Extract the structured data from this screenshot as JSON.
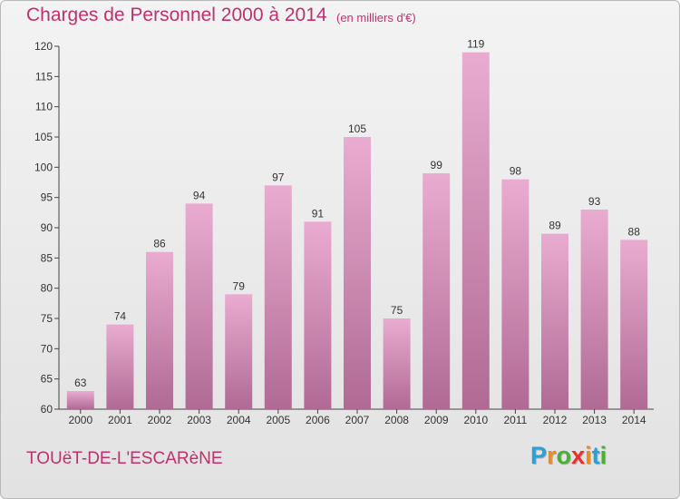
{
  "title": "Charges de Personnel 2000 à 2014",
  "subtitle": "(en milliers d'€)",
  "commune": "TOUëT-DE-L'ESCARèNE",
  "logo": {
    "letters": [
      "P",
      "r",
      "o",
      "x",
      "i",
      "t",
      "i"
    ],
    "colors": [
      "#2a9fd8",
      "#f08a1c",
      "#4caf34",
      "#e8312a",
      "#f08a1c",
      "#2a9fd8",
      "#4caf34"
    ]
  },
  "colors": {
    "bar_top": "#e9acd0",
    "bar_bottom": "#b06a94",
    "accent": "#c0306e"
  },
  "chart_data": {
    "type": "bar",
    "categories": [
      "2000",
      "2001",
      "2002",
      "2003",
      "2004",
      "2005",
      "2006",
      "2007",
      "2008",
      "2009",
      "2010",
      "2011",
      "2012",
      "2013",
      "2014"
    ],
    "values": [
      63,
      74,
      86,
      94,
      79,
      97,
      91,
      105,
      75,
      99,
      119,
      98,
      89,
      93,
      88
    ],
    "title": "Charges de Personnel 2000 à 2014",
    "ylim": [
      60,
      120
    ],
    "yticks": [
      60,
      65,
      70,
      75,
      80,
      85,
      90,
      95,
      100,
      105,
      110,
      115,
      120
    ],
    "grid": false,
    "legend": "none"
  }
}
